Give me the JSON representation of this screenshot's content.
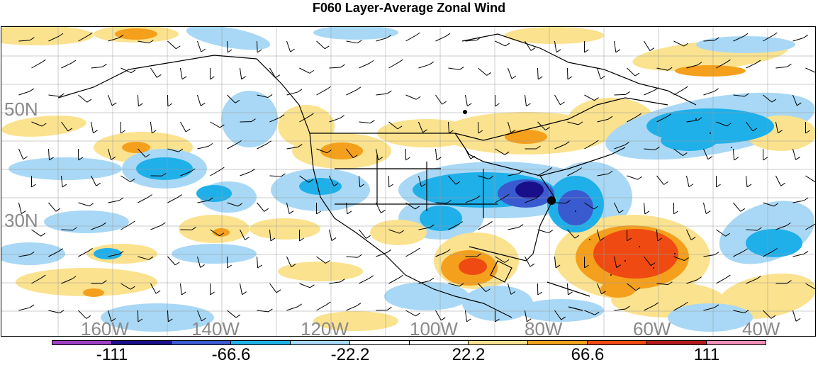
{
  "title": "F060 Layer-Average Zonal Wind",
  "lat_labels": [
    "50N",
    "30N"
  ],
  "lon_labels": [
    "160W",
    "140W",
    "120W",
    "100W",
    "80W",
    "60W",
    "40W"
  ],
  "colorbar": {
    "labels": [
      "-111",
      "-66.6",
      "-22.2",
      "22.2",
      "66.6",
      "111"
    ],
    "colors": [
      "#9d3fc4",
      "#1a0f8a",
      "#3a5bd0",
      "#1fb0ea",
      "#a8d8f5",
      "#ffffff",
      "#ffffff",
      "#fbe28e",
      "#f4a01c",
      "#ef4a12",
      "#b3191c",
      "#f78fb8"
    ]
  },
  "map": {
    "contour_colors": {
      "light_blue": "#a8d8f5",
      "medium_blue": "#1fb0ea",
      "dark_blue": "#3a5bd0",
      "navy": "#1a0f8a",
      "light_yellow": "#fbe28e",
      "orange": "#f4a01c",
      "red_orange": "#ef4a12",
      "coastline": "#000000",
      "grid": "#9a9a9a"
    }
  }
}
